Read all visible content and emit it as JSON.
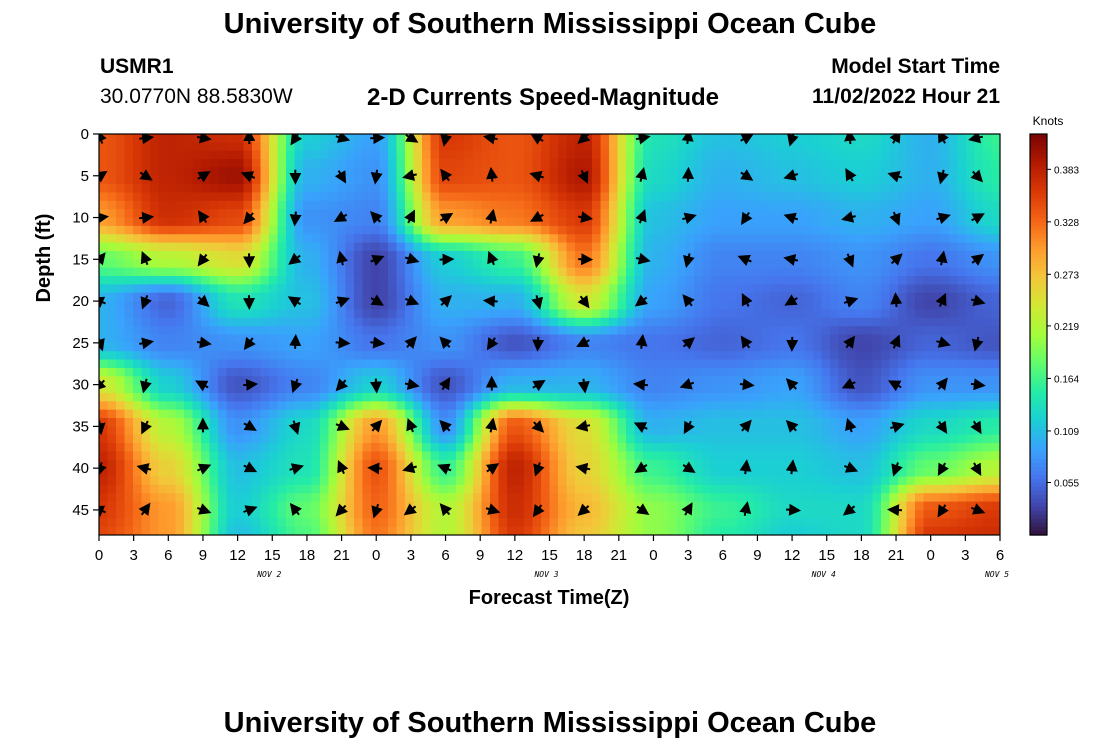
{
  "header": {
    "title": "University of Southern Mississippi Ocean Cube",
    "station_id": "USMR1",
    "station_coords": "30.0770N  88.5830W",
    "chart_title": "2-D Currents Speed-Magnitude",
    "model_start_label": "Model Start Time",
    "model_start_value": "11/02/2022 Hour 21"
  },
  "footer": {
    "title": "University of Southern Mississippi Ocean Cube"
  },
  "chart_data": {
    "type": "heatmap",
    "title": "2-D Currents Speed-Magnitude",
    "xlabel": "Forecast Time(Z)",
    "ylabel": "Depth (ft)",
    "x_tick_labels": [
      "0",
      "3",
      "6",
      "9",
      "12",
      "15",
      "18",
      "21",
      "0",
      "3",
      "6",
      "9",
      "12",
      "15",
      "18",
      "21",
      "0",
      "3",
      "6",
      "9",
      "12",
      "15",
      "18",
      "21",
      "0",
      "3",
      "6"
    ],
    "x_date_labels": [
      {
        "label": "NOV 2",
        "at_tick": 5
      },
      {
        "label": "NOV 3",
        "at_tick": 13
      },
      {
        "label": "NOV 4",
        "at_tick": 21
      },
      {
        "label": "NOV 5",
        "at_tick": 26
      }
    ],
    "y_ticks": [
      0,
      5,
      10,
      15,
      20,
      25,
      30,
      35,
      40,
      45
    ],
    "ylim": [
      0,
      48
    ],
    "forecast_hours_range": [
      0,
      78
    ],
    "colorbar": {
      "title": "Knots",
      "ticks": [
        0.055,
        0.109,
        0.164,
        0.219,
        0.273,
        0.328,
        0.383
      ],
      "range": [
        0.0,
        0.42
      ],
      "colors": [
        "#30123b",
        "#4145ab",
        "#4675ed",
        "#39a2fc",
        "#1bcfd4",
        "#24eca6",
        "#61fc6c",
        "#a4fc3b",
        "#d1e834",
        "#f3c63a",
        "#fe9b2d",
        "#f36315",
        "#d93806",
        "#b11901",
        "#7a0403"
      ]
    },
    "speed_grid": {
      "depths_ft": [
        0,
        5,
        10,
        15,
        20,
        25,
        30,
        35,
        40,
        45,
        48
      ],
      "hours": [
        0,
        6,
        12,
        18,
        24,
        30,
        36,
        42,
        48,
        54,
        60,
        66,
        72,
        78
      ],
      "values": [
        [
          0.34,
          0.38,
          0.37,
          0.12,
          0.09,
          0.36,
          0.34,
          0.38,
          0.14,
          0.11,
          0.12,
          0.13,
          0.1,
          0.16
        ],
        [
          0.34,
          0.38,
          0.4,
          0.1,
          0.08,
          0.35,
          0.34,
          0.39,
          0.13,
          0.1,
          0.11,
          0.12,
          0.1,
          0.15
        ],
        [
          0.3,
          0.37,
          0.35,
          0.08,
          0.07,
          0.3,
          0.32,
          0.36,
          0.11,
          0.09,
          0.09,
          0.1,
          0.09,
          0.13
        ],
        [
          0.18,
          0.22,
          0.25,
          0.1,
          0.03,
          0.12,
          0.16,
          0.32,
          0.1,
          0.07,
          0.07,
          0.08,
          0.06,
          0.08
        ],
        [
          0.1,
          0.05,
          0.14,
          0.11,
          0.03,
          0.1,
          0.1,
          0.24,
          0.09,
          0.06,
          0.05,
          0.07,
          0.03,
          0.05
        ],
        [
          0.1,
          0.07,
          0.08,
          0.09,
          0.06,
          0.08,
          0.04,
          0.07,
          0.06,
          0.05,
          0.06,
          0.03,
          0.05,
          0.04
        ],
        [
          0.24,
          0.12,
          0.04,
          0.07,
          0.12,
          0.04,
          0.1,
          0.1,
          0.07,
          0.08,
          0.09,
          0.04,
          0.08,
          0.08
        ],
        [
          0.36,
          0.22,
          0.08,
          0.13,
          0.3,
          0.08,
          0.34,
          0.25,
          0.1,
          0.11,
          0.11,
          0.09,
          0.13,
          0.15
        ],
        [
          0.38,
          0.26,
          0.11,
          0.14,
          0.34,
          0.16,
          0.38,
          0.26,
          0.16,
          0.12,
          0.12,
          0.11,
          0.18,
          0.22
        ],
        [
          0.36,
          0.3,
          0.12,
          0.18,
          0.33,
          0.22,
          0.37,
          0.28,
          0.2,
          0.16,
          0.13,
          0.13,
          0.34,
          0.36
        ],
        [
          0.35,
          0.3,
          0.11,
          0.17,
          0.32,
          0.22,
          0.36,
          0.27,
          0.2,
          0.15,
          0.12,
          0.13,
          0.36,
          0.37
        ]
      ]
    },
    "vector_hours": [
      0,
      4,
      9,
      13,
      17,
      21,
      24,
      27,
      30,
      34,
      38,
      42,
      47,
      51,
      56,
      60,
      65,
      69,
      73,
      76
    ],
    "vector_depths_ft": [
      0,
      5,
      10,
      15,
      20,
      25,
      30,
      35,
      40,
      45
    ]
  }
}
